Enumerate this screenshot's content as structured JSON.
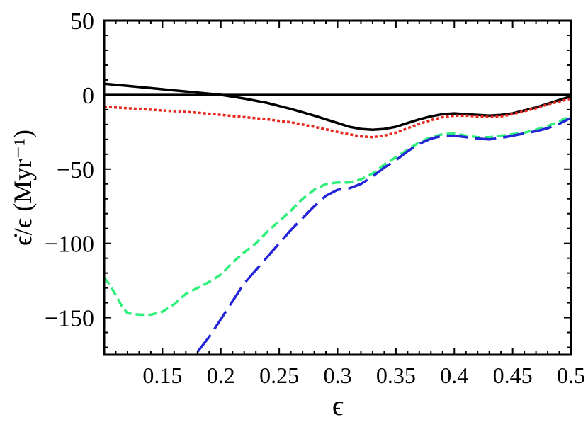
{
  "chart_data": {
    "type": "line",
    "title": "",
    "xlabel": "ϵ",
    "ylabel": "ϵ̇/ϵ (Myr⁻¹)",
    "xlim": [
      0.1,
      0.5
    ],
    "ylim": [
      -175,
      50
    ],
    "x_ticks": [
      {
        "value": 0.15,
        "label": "0.15"
      },
      {
        "value": 0.2,
        "label": "0.2"
      },
      {
        "value": 0.25,
        "label": "0.25"
      },
      {
        "value": 0.3,
        "label": "0.3"
      },
      {
        "value": 0.35,
        "label": "0.35"
      },
      {
        "value": 0.4,
        "label": "0.4"
      },
      {
        "value": 0.45,
        "label": "0.45"
      },
      {
        "value": 0.5,
        "label": "0.5"
      }
    ],
    "y_ticks": [
      {
        "value": 50,
        "label": "50"
      },
      {
        "value": 0,
        "label": "0"
      },
      {
        "value": -50,
        "label": "−50"
      },
      {
        "value": -100,
        "label": "−100"
      },
      {
        "value": -150,
        "label": "−150"
      }
    ],
    "grid": false,
    "legend": "none",
    "reference_line": {
      "y": 0,
      "color": "#000000"
    },
    "series": [
      {
        "color": "#000000",
        "style": "solid",
        "x": [
          0.1,
          0.12,
          0.14,
          0.16,
          0.18,
          0.2,
          0.22,
          0.24,
          0.26,
          0.28,
          0.3,
          0.31,
          0.32,
          0.33,
          0.34,
          0.35,
          0.36,
          0.37,
          0.38,
          0.39,
          0.4,
          0.41,
          0.42,
          0.43,
          0.44,
          0.45,
          0.46,
          0.47,
          0.48,
          0.49,
          0.5
        ],
        "y": [
          7.5,
          6,
          4.5,
          3,
          1.5,
          0,
          -2.5,
          -5.5,
          -9.5,
          -14,
          -19,
          -21.5,
          -23,
          -23.5,
          -23,
          -21.5,
          -19,
          -16.5,
          -14.5,
          -13,
          -12.5,
          -13,
          -13.5,
          -14,
          -13.5,
          -12.5,
          -10.5,
          -8.5,
          -6,
          -3.5,
          -1
        ]
      },
      {
        "color": "#e8281e",
        "style": "dotted",
        "x": [
          0.1,
          0.12,
          0.14,
          0.16,
          0.18,
          0.2,
          0.22,
          0.24,
          0.26,
          0.28,
          0.3,
          0.31,
          0.32,
          0.33,
          0.34,
          0.35,
          0.36,
          0.37,
          0.38,
          0.39,
          0.4,
          0.41,
          0.42,
          0.43,
          0.44,
          0.45,
          0.46,
          0.47,
          0.48,
          0.49,
          0.5
        ],
        "y": [
          -8,
          -9,
          -10,
          -11,
          -12,
          -13.5,
          -15,
          -16.5,
          -18.5,
          -21.5,
          -25,
          -26.5,
          -28,
          -28.5,
          -27.5,
          -25.5,
          -22.5,
          -19.5,
          -17,
          -15,
          -14,
          -14,
          -14.5,
          -15,
          -14.5,
          -13,
          -11,
          -9,
          -6.5,
          -4.5,
          -2.5
        ]
      },
      {
        "color": "#2ef07a",
        "style": "dashed",
        "x": [
          0.1,
          0.105,
          0.11,
          0.115,
          0.12,
          0.13,
          0.14,
          0.15,
          0.16,
          0.17,
          0.18,
          0.19,
          0.2,
          0.21,
          0.22,
          0.23,
          0.24,
          0.25,
          0.26,
          0.27,
          0.28,
          0.29,
          0.3,
          0.31,
          0.32,
          0.33,
          0.34,
          0.35,
          0.36,
          0.37,
          0.38,
          0.39,
          0.4,
          0.41,
          0.42,
          0.43,
          0.44,
          0.45,
          0.46,
          0.47,
          0.48,
          0.49,
          0.5
        ],
        "y": [
          -123,
          -128,
          -135,
          -142,
          -147,
          -148,
          -148,
          -146,
          -141,
          -134,
          -130,
          -126,
          -121,
          -113,
          -106,
          -100,
          -92,
          -85,
          -78,
          -70,
          -64,
          -60,
          -59,
          -59,
          -57,
          -53,
          -47,
          -42,
          -37,
          -32,
          -28.5,
          -26.5,
          -26,
          -27.5,
          -28.5,
          -28.5,
          -27.5,
          -26.5,
          -25.5,
          -23.5,
          -21,
          -18,
          -14
        ]
      },
      {
        "color": "#2424d8",
        "style": "long-dashed",
        "x": [
          0.18,
          0.19,
          0.2,
          0.21,
          0.22,
          0.23,
          0.24,
          0.25,
          0.26,
          0.27,
          0.28,
          0.29,
          0.3,
          0.31,
          0.32,
          0.33,
          0.34,
          0.35,
          0.36,
          0.37,
          0.38,
          0.39,
          0.4,
          0.41,
          0.42,
          0.43,
          0.44,
          0.45,
          0.46,
          0.47,
          0.48,
          0.49,
          0.5
        ],
        "y": [
          -173,
          -163,
          -151,
          -139,
          -127,
          -118,
          -109,
          -100,
          -91,
          -83,
          -75,
          -68,
          -64,
          -63,
          -60,
          -55,
          -49,
          -44,
          -38,
          -33,
          -29.5,
          -27.5,
          -27.5,
          -28.5,
          -29.5,
          -30,
          -29,
          -27.5,
          -26,
          -24.5,
          -22.5,
          -19.5,
          -15.5
        ]
      }
    ]
  }
}
